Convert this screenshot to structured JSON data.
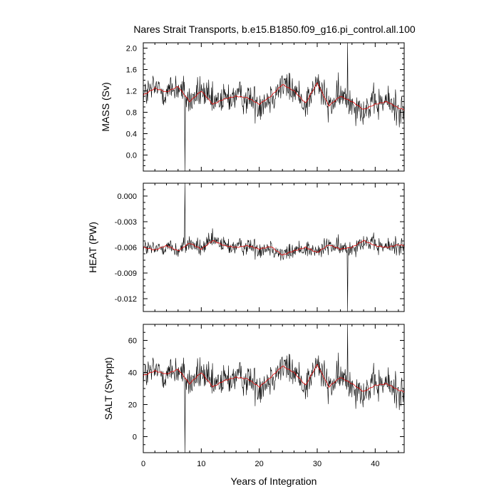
{
  "title": "Nares Strait Transports, b.e15.B1850.f09_g16.pi_control.all.100",
  "xlabel": "Years of Integration",
  "colors": {
    "raw": "#000000",
    "smooth": "#e00000"
  },
  "chart_data": [
    {
      "type": "line",
      "ylabel": "MASS (Sv)",
      "xlim": [
        0,
        45
      ],
      "ylim": [
        -0.3,
        2.1
      ],
      "yticks": [
        "2.0",
        "1.6",
        "1.2",
        "0.8",
        "0.4",
        "0.0"
      ],
      "ytick_values": [
        2.0,
        1.6,
        1.2,
        0.8,
        0.4,
        0.0
      ],
      "xticks": [
        0,
        10,
        20,
        30,
        40
      ],
      "series": [
        {
          "style": "raw-monthly",
          "baseline": 1.05,
          "amplitude": 0.32,
          "spikes": [
            {
              "x": 7.2,
              "y": -0.3
            },
            {
              "x": 35.2,
              "y": 2.1
            }
          ]
        },
        {
          "style": "smoothed-running-mean",
          "x": [
            0,
            2,
            4,
            6,
            8,
            10,
            12,
            14,
            16,
            18,
            20,
            22,
            24,
            26,
            28,
            30,
            32,
            34,
            36,
            38,
            40,
            42,
            44,
            45
          ],
          "values": [
            1.12,
            1.25,
            1.18,
            1.28,
            1.0,
            1.2,
            0.95,
            1.05,
            1.1,
            1.07,
            0.95,
            1.1,
            1.32,
            1.2,
            0.97,
            1.35,
            0.92,
            1.1,
            1.0,
            0.85,
            0.95,
            1.0,
            0.88,
            0.85
          ]
        }
      ]
    },
    {
      "type": "line",
      "ylabel": "HEAT (PW)",
      "xlim": [
        0,
        45
      ],
      "ylim": [
        -0.0135,
        0.0015
      ],
      "yticks": [
        "0.000",
        "-0.003",
        "-0.006",
        "-0.009",
        "-0.012"
      ],
      "ytick_values": [
        0.0,
        -0.003,
        -0.006,
        -0.009,
        -0.012
      ],
      "xticks": [
        0,
        10,
        20,
        30,
        40
      ],
      "series": [
        {
          "style": "raw-monthly",
          "baseline": -0.006,
          "amplitude": 0.0011,
          "spikes": [
            {
              "x": 7.2,
              "y": 0.0015
            },
            {
              "x": 35.2,
              "y": -0.0135
            }
          ]
        },
        {
          "style": "smoothed-running-mean",
          "x": [
            0,
            2,
            4,
            6,
            8,
            10,
            12,
            14,
            16,
            18,
            20,
            22,
            24,
            26,
            28,
            30,
            32,
            34,
            36,
            38,
            40,
            42,
            44,
            45
          ],
          "values": [
            -0.006,
            -0.0063,
            -0.0058,
            -0.0064,
            -0.0055,
            -0.0062,
            -0.0052,
            -0.0058,
            -0.006,
            -0.0058,
            -0.0062,
            -0.0059,
            -0.0069,
            -0.0064,
            -0.006,
            -0.0066,
            -0.0057,
            -0.0062,
            -0.006,
            -0.0052,
            -0.0058,
            -0.006,
            -0.0057,
            -0.0058
          ]
        }
      ]
    },
    {
      "type": "line",
      "ylabel": "SALT (Sv*ppt)",
      "xlim": [
        0,
        45
      ],
      "ylim": [
        -10,
        70
      ],
      "yticks": [
        "60",
        "40",
        "20",
        "0"
      ],
      "ytick_values": [
        60,
        40,
        20,
        0
      ],
      "xticks": [
        0,
        10,
        20,
        30,
        40
      ],
      "xticklabels": [
        "0",
        "10",
        "20",
        "30",
        "40"
      ],
      "series": [
        {
          "style": "raw-monthly",
          "baseline": 35,
          "amplitude": 11,
          "spikes": [
            {
              "x": 7.2,
              "y": -10
            },
            {
              "x": 35.2,
              "y": 70
            }
          ]
        },
        {
          "style": "smoothed-running-mean",
          "x": [
            0,
            2,
            4,
            6,
            8,
            10,
            12,
            14,
            16,
            18,
            20,
            22,
            24,
            26,
            28,
            30,
            32,
            34,
            36,
            38,
            40,
            42,
            44,
            45
          ],
          "values": [
            38,
            41,
            39,
            42,
            33,
            40,
            31,
            35,
            37,
            36,
            31,
            37,
            44,
            40,
            32,
            45,
            31,
            37,
            33,
            28,
            32,
            33,
            29,
            28
          ]
        }
      ]
    }
  ]
}
